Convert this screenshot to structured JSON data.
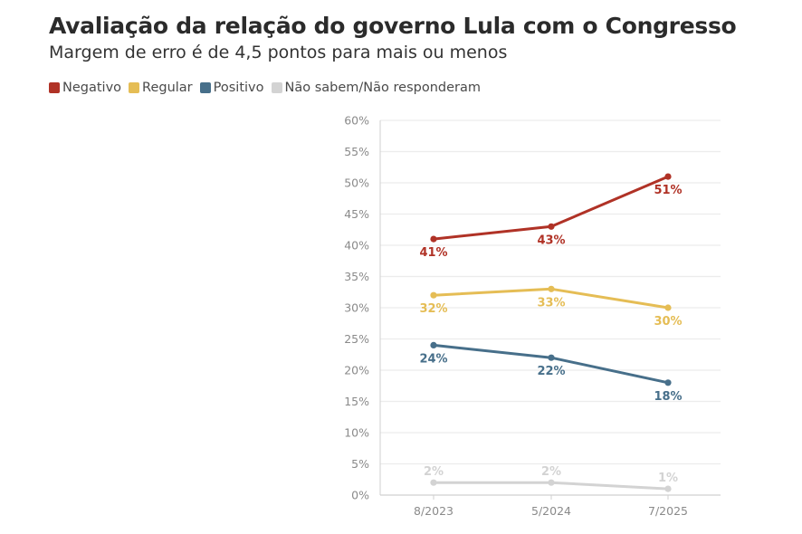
{
  "title": "Avaliação da relação do governo Lula com o Congresso",
  "subtitle": "Margem de erro é de 4,5 pontos para mais ou menos",
  "legend": [
    {
      "label": "Negativo",
      "color": "#b03226"
    },
    {
      "label": "Regular",
      "color": "#e5bd55"
    },
    {
      "label": "Positivo",
      "color": "#476f8a"
    },
    {
      "label": "Não sabem/Não responderam",
      "color": "#d3d3d3"
    }
  ],
  "chart_data": {
    "type": "line",
    "title": "Avaliação da relação do governo Lula com o Congresso",
    "subtitle": "Margem de erro é de 4,5 pontos para mais ou menos",
    "xlabel": "",
    "ylabel": "",
    "categories": [
      "8/2023",
      "5/2024",
      "7/2025"
    ],
    "ylim": [
      0,
      60
    ],
    "yticks": [
      0,
      5,
      10,
      15,
      20,
      25,
      30,
      35,
      40,
      45,
      50,
      55,
      60
    ],
    "ytick_labels": [
      "0%",
      "5%",
      "10%",
      "15%",
      "20%",
      "25%",
      "30%",
      "35%",
      "40%",
      "45%",
      "50%",
      "55%",
      "60%"
    ],
    "grid": true,
    "legend_position": "top-left",
    "series": [
      {
        "name": "Negativo",
        "color": "#b03226",
        "values": [
          41,
          43,
          51
        ],
        "labels": [
          "41%",
          "43%",
          "51%"
        ],
        "label_position": [
          "below",
          "below",
          "below"
        ]
      },
      {
        "name": "Regular",
        "color": "#e5bd55",
        "values": [
          32,
          33,
          30
        ],
        "labels": [
          "32%",
          "33%",
          "30%"
        ],
        "label_position": [
          "below",
          "below",
          "below"
        ]
      },
      {
        "name": "Positivo",
        "color": "#476f8a",
        "values": [
          24,
          22,
          18
        ],
        "labels": [
          "24%",
          "22%",
          "18%"
        ],
        "label_position": [
          "below",
          "below",
          "below"
        ]
      },
      {
        "name": "Não sabem/Não responderam",
        "color": "#d3d3d3",
        "values": [
          2,
          2,
          1
        ],
        "labels": [
          "2%",
          "2%",
          "1%"
        ],
        "label_position": [
          "above",
          "above",
          "above"
        ]
      }
    ]
  }
}
